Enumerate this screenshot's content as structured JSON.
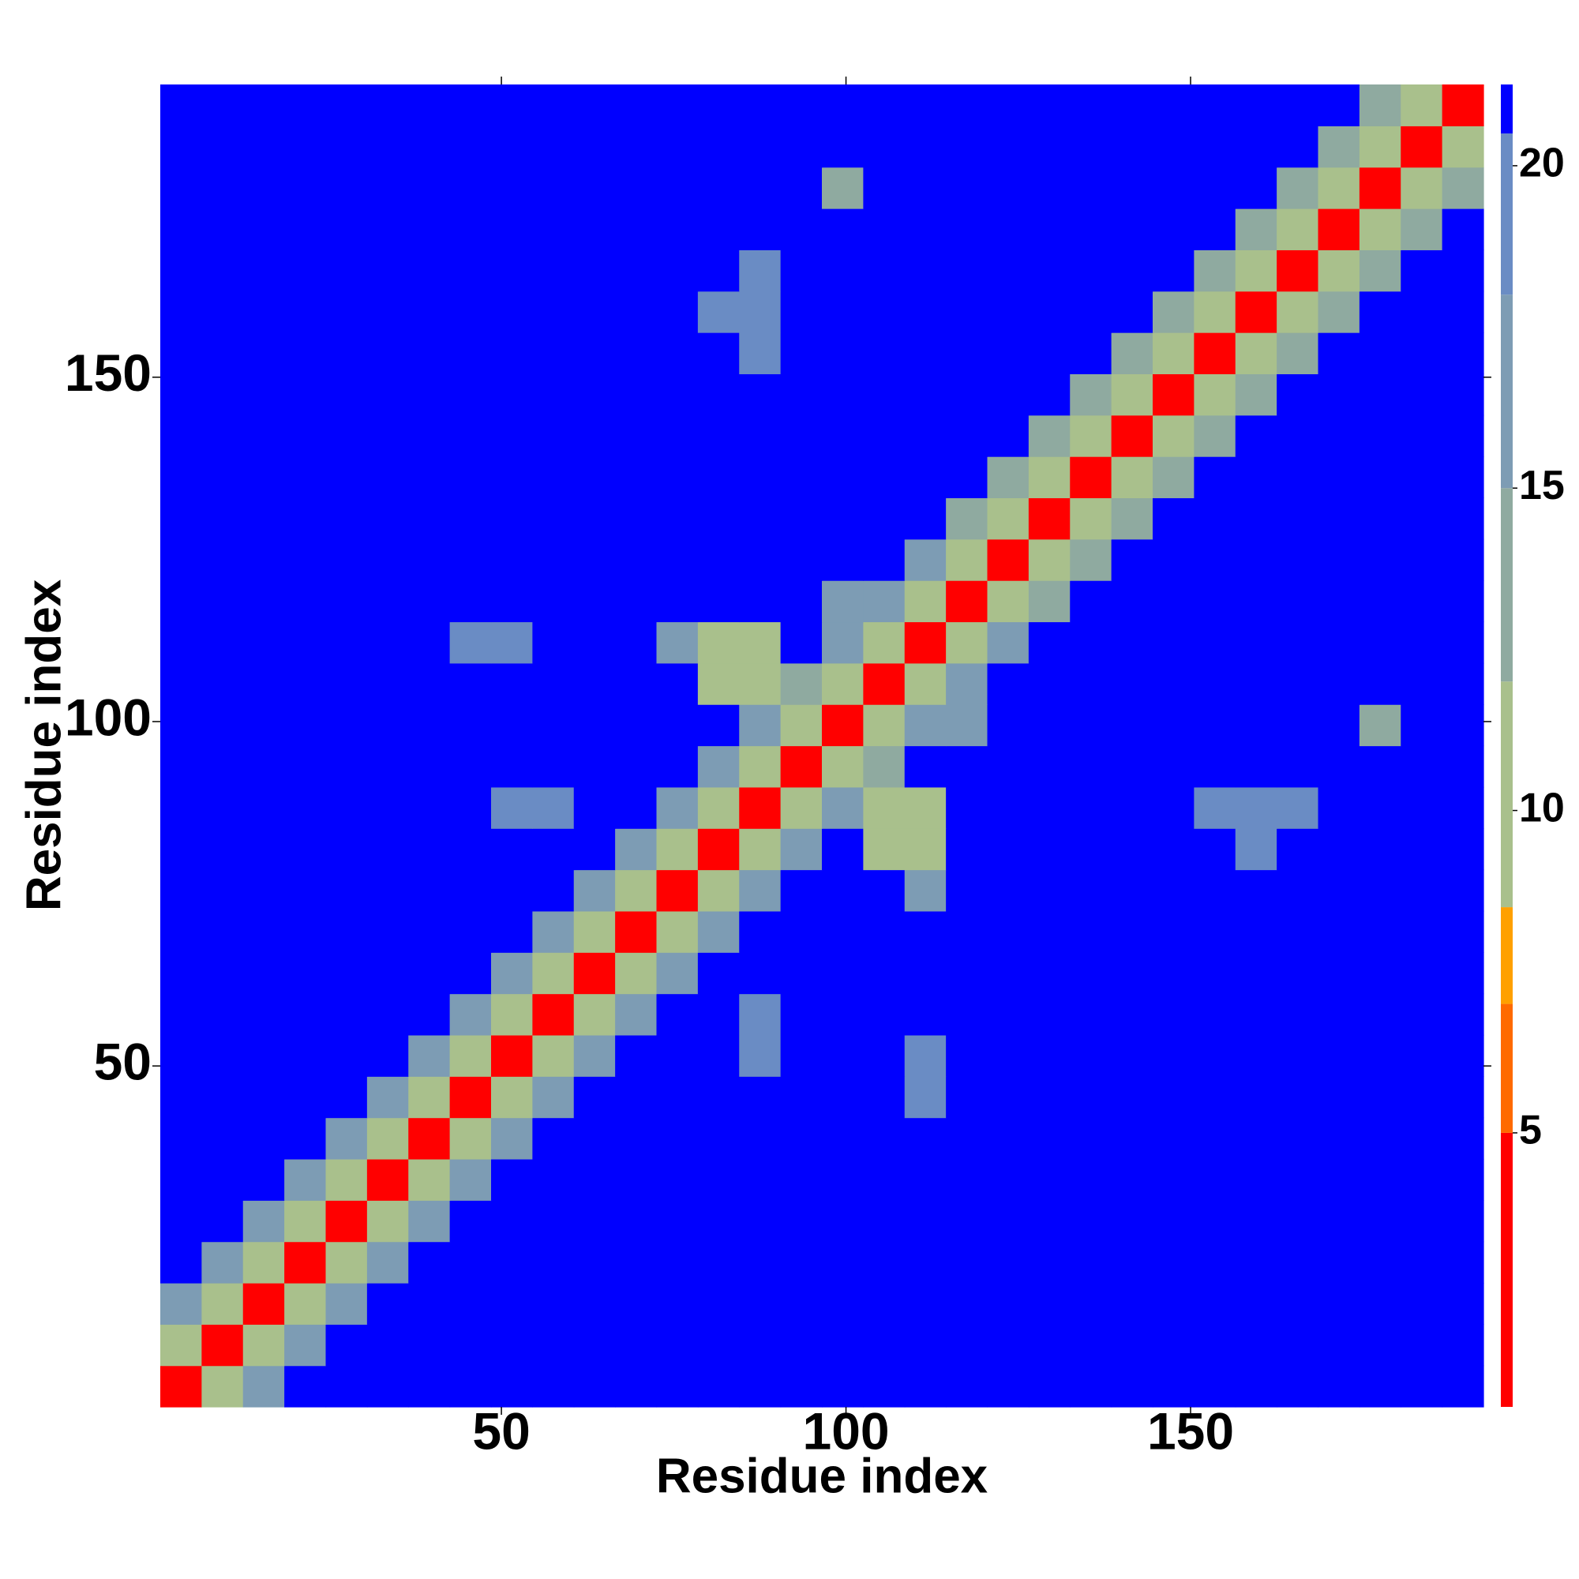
{
  "chart_data": {
    "type": "heatmap",
    "x_label": "Residue index",
    "y_label": "Residue index",
    "xlim": [
      0.5,
      192.5
    ],
    "ylim": [
      0.5,
      192.5
    ],
    "xticks": [
      50,
      100,
      150
    ],
    "yticks": [
      50,
      100,
      150
    ],
    "bin_edges": [
      0.5,
      6.5,
      12.5,
      18.5,
      24.5,
      30.5,
      36.5,
      42.5,
      48.5,
      54.5,
      60.5,
      66.5,
      72.5,
      78.5,
      84.5,
      90.5,
      96.5,
      102.5,
      108.5,
      114.5,
      120.5,
      126.5,
      132.5,
      138.5,
      144.5,
      150.5,
      156.5,
      162.5,
      168.5,
      174.5,
      180.5,
      186.5,
      192.5
    ],
    "clim": [
      0.75,
      21.26
    ],
    "cticks": [
      5,
      10,
      15,
      20
    ],
    "colorscale": [
      [
        0.75,
        "#ff0000"
      ],
      [
        5,
        "#ff6a00"
      ],
      [
        7,
        "#ffa000"
      ],
      [
        8.5,
        "#a9c08c"
      ],
      [
        12,
        "#8faaa0"
      ],
      [
        15,
        "#7d9cb4"
      ],
      [
        18,
        "#6a8cc4"
      ],
      [
        20.5,
        "#0000ff"
      ]
    ],
    "grid": false,
    "values": [
      [
        3,
        10,
        16,
        21,
        21,
        21,
        21,
        21,
        21,
        21,
        21,
        21,
        21,
        21,
        21,
        21,
        21,
        21,
        21,
        21,
        21,
        21,
        21,
        21,
        21,
        21,
        21,
        21,
        21,
        21,
        21,
        21
      ],
      [
        10,
        3,
        10,
        16,
        21,
        21,
        21,
        21,
        21,
        21,
        21,
        21,
        21,
        21,
        21,
        21,
        21,
        21,
        21,
        21,
        21,
        21,
        21,
        21,
        21,
        21,
        21,
        21,
        21,
        21,
        21,
        21
      ],
      [
        16,
        10,
        3,
        10,
        16,
        21,
        21,
        21,
        21,
        21,
        21,
        21,
        21,
        21,
        21,
        21,
        21,
        21,
        21,
        21,
        21,
        21,
        21,
        21,
        21,
        21,
        21,
        21,
        21,
        21,
        21,
        21
      ],
      [
        21,
        16,
        10,
        3,
        10,
        16,
        21,
        21,
        21,
        21,
        21,
        21,
        21,
        21,
        21,
        21,
        21,
        21,
        21,
        21,
        21,
        21,
        21,
        21,
        21,
        21,
        21,
        21,
        21,
        21,
        21,
        21
      ],
      [
        21,
        21,
        16,
        10,
        3,
        10,
        16,
        21,
        21,
        21,
        21,
        21,
        21,
        21,
        21,
        21,
        21,
        21,
        21,
        21,
        21,
        21,
        21,
        21,
        21,
        21,
        21,
        21,
        21,
        21,
        21,
        21
      ],
      [
        21,
        21,
        21,
        16,
        10,
        3,
        10,
        16,
        21,
        21,
        21,
        21,
        21,
        21,
        21,
        21,
        21,
        21,
        21,
        21,
        21,
        21,
        21,
        21,
        21,
        21,
        21,
        21,
        21,
        21,
        21,
        21
      ],
      [
        21,
        21,
        21,
        21,
        16,
        10,
        3,
        10,
        16,
        21,
        21,
        21,
        21,
        21,
        21,
        21,
        21,
        21,
        21,
        21,
        21,
        21,
        21,
        21,
        21,
        21,
        21,
        21,
        21,
        21,
        21,
        21
      ],
      [
        21,
        21,
        21,
        21,
        21,
        16,
        10,
        3,
        10,
        16,
        21,
        21,
        21,
        21,
        21,
        21,
        21,
        21,
        18,
        21,
        21,
        21,
        21,
        21,
        21,
        21,
        21,
        21,
        21,
        21,
        21,
        21
      ],
      [
        21,
        21,
        21,
        21,
        21,
        21,
        16,
        10,
        3,
        10,
        16,
        21,
        21,
        21,
        18,
        21,
        21,
        21,
        18,
        21,
        21,
        21,
        21,
        21,
        21,
        21,
        21,
        21,
        21,
        21,
        21,
        21
      ],
      [
        21,
        21,
        21,
        21,
        21,
        21,
        21,
        16,
        10,
        3,
        10,
        16,
        21,
        21,
        18,
        21,
        21,
        21,
        21,
        21,
        21,
        21,
        21,
        21,
        21,
        21,
        21,
        21,
        21,
        21,
        21,
        21
      ],
      [
        21,
        21,
        21,
        21,
        21,
        21,
        21,
        21,
        16,
        10,
        3,
        10,
        16,
        21,
        21,
        21,
        21,
        21,
        21,
        21,
        21,
        21,
        21,
        21,
        21,
        21,
        21,
        21,
        21,
        21,
        21,
        21
      ],
      [
        21,
        21,
        21,
        21,
        21,
        21,
        21,
        21,
        21,
        16,
        10,
        3,
        10,
        16,
        21,
        21,
        21,
        21,
        21,
        21,
        21,
        21,
        21,
        21,
        21,
        21,
        21,
        21,
        21,
        21,
        21,
        21
      ],
      [
        21,
        21,
        21,
        21,
        21,
        21,
        21,
        21,
        21,
        21,
        16,
        10,
        3,
        10,
        16,
        21,
        21,
        21,
        17,
        21,
        21,
        21,
        21,
        21,
        21,
        21,
        21,
        21,
        21,
        21,
        21,
        21
      ],
      [
        21,
        21,
        21,
        21,
        21,
        21,
        21,
        21,
        21,
        21,
        21,
        16,
        10,
        3,
        10,
        16,
        21,
        9,
        9,
        21,
        21,
        21,
        21,
        21,
        21,
        21,
        18,
        21,
        21,
        21,
        21,
        21
      ],
      [
        21,
        21,
        21,
        21,
        21,
        21,
        21,
        21,
        18,
        18,
        21,
        21,
        16,
        10,
        3,
        10,
        16,
        9,
        9,
        21,
        21,
        21,
        21,
        21,
        21,
        18,
        18,
        18,
        21,
        21,
        21,
        21
      ],
      [
        21,
        21,
        21,
        21,
        21,
        21,
        21,
        21,
        21,
        21,
        21,
        21,
        21,
        16,
        10,
        3,
        10,
        13,
        21,
        21,
        21,
        21,
        21,
        21,
        21,
        21,
        21,
        21,
        21,
        21,
        21,
        21
      ],
      [
        21,
        21,
        21,
        21,
        21,
        21,
        21,
        21,
        21,
        21,
        21,
        21,
        21,
        21,
        16,
        10,
        3,
        10,
        16,
        17,
        21,
        21,
        21,
        21,
        21,
        21,
        21,
        21,
        21,
        12,
        21,
        21
      ],
      [
        21,
        21,
        21,
        21,
        21,
        21,
        21,
        21,
        21,
        21,
        21,
        21,
        21,
        9,
        9,
        13,
        10,
        3,
        10,
        16,
        21,
        21,
        21,
        21,
        21,
        21,
        21,
        21,
        21,
        21,
        21,
        21
      ],
      [
        21,
        21,
        21,
        21,
        21,
        21,
        21,
        18,
        18,
        21,
        21,
        21,
        17,
        9,
        9,
        21,
        16,
        10,
        3,
        10,
        16,
        21,
        21,
        21,
        21,
        21,
        21,
        21,
        21,
        21,
        21,
        21
      ],
      [
        21,
        21,
        21,
        21,
        21,
        21,
        21,
        21,
        21,
        21,
        21,
        21,
        21,
        21,
        21,
        21,
        17,
        16,
        10,
        3,
        10,
        14,
        21,
        21,
        21,
        21,
        21,
        21,
        21,
        21,
        21,
        21
      ],
      [
        21,
        21,
        21,
        21,
        21,
        21,
        21,
        21,
        21,
        21,
        21,
        21,
        21,
        21,
        21,
        21,
        21,
        21,
        16,
        10,
        3,
        10,
        14,
        21,
        21,
        21,
        21,
        21,
        21,
        21,
        21,
        21
      ],
      [
        21,
        21,
        21,
        21,
        21,
        21,
        21,
        21,
        21,
        21,
        21,
        21,
        21,
        21,
        21,
        21,
        21,
        21,
        21,
        14,
        10,
        3,
        10,
        14,
        21,
        21,
        21,
        21,
        21,
        21,
        21,
        21
      ],
      [
        21,
        21,
        21,
        21,
        21,
        21,
        21,
        21,
        21,
        21,
        21,
        21,
        21,
        21,
        21,
        21,
        21,
        21,
        21,
        21,
        14,
        10,
        3,
        10,
        14,
        21,
        21,
        21,
        21,
        21,
        21,
        21
      ],
      [
        21,
        21,
        21,
        21,
        21,
        21,
        21,
        21,
        21,
        21,
        21,
        21,
        21,
        21,
        21,
        21,
        21,
        21,
        21,
        21,
        21,
        14,
        10,
        3,
        10,
        14,
        21,
        21,
        21,
        21,
        21,
        21
      ],
      [
        21,
        21,
        21,
        21,
        21,
        21,
        21,
        21,
        21,
        21,
        21,
        21,
        21,
        21,
        21,
        21,
        21,
        21,
        21,
        21,
        21,
        21,
        14,
        10,
        3,
        10,
        14,
        21,
        21,
        21,
        21,
        21
      ],
      [
        21,
        21,
        21,
        21,
        21,
        21,
        21,
        21,
        21,
        21,
        21,
        21,
        21,
        21,
        18,
        21,
        21,
        21,
        21,
        21,
        21,
        21,
        21,
        14,
        10,
        3,
        10,
        14,
        21,
        21,
        21,
        21
      ],
      [
        21,
        21,
        21,
        21,
        21,
        21,
        21,
        21,
        21,
        21,
        21,
        21,
        21,
        18,
        18,
        21,
        21,
        21,
        21,
        21,
        21,
        21,
        21,
        21,
        14,
        10,
        3,
        10,
        14,
        21,
        21,
        21
      ],
      [
        21,
        21,
        21,
        21,
        21,
        21,
        21,
        21,
        21,
        21,
        21,
        21,
        21,
        21,
        18,
        21,
        21,
        21,
        21,
        21,
        21,
        21,
        21,
        21,
        21,
        14,
        10,
        3,
        10,
        14,
        21,
        21
      ],
      [
        21,
        21,
        21,
        21,
        21,
        21,
        21,
        21,
        21,
        21,
        21,
        21,
        21,
        21,
        21,
        21,
        21,
        21,
        21,
        21,
        21,
        21,
        21,
        21,
        21,
        21,
        14,
        10,
        3,
        10,
        14,
        21
      ],
      [
        21,
        21,
        21,
        21,
        21,
        21,
        21,
        21,
        21,
        21,
        21,
        21,
        21,
        21,
        21,
        21,
        12,
        21,
        21,
        21,
        21,
        21,
        21,
        21,
        21,
        21,
        21,
        14,
        10,
        3,
        10,
        14
      ],
      [
        21,
        21,
        21,
        21,
        21,
        21,
        21,
        21,
        21,
        21,
        21,
        21,
        21,
        21,
        21,
        21,
        21,
        21,
        21,
        21,
        21,
        21,
        21,
        21,
        21,
        21,
        21,
        21,
        14,
        10,
        3,
        10
      ],
      [
        21,
        21,
        21,
        21,
        21,
        21,
        21,
        21,
        21,
        21,
        21,
        21,
        21,
        21,
        21,
        21,
        21,
        21,
        21,
        21,
        21,
        21,
        21,
        21,
        21,
        21,
        21,
        21,
        21,
        14,
        10,
        3
      ]
    ]
  }
}
